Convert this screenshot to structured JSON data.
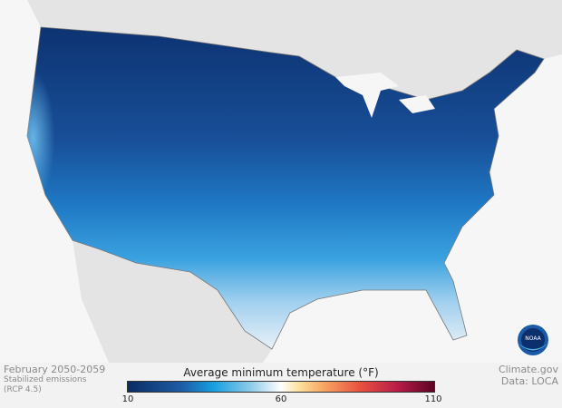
{
  "map": {
    "period": "February 2050-2059",
    "scenario_line1": "Stabilized emissions",
    "scenario_line2": "(RCP 4.5)",
    "variable": "Average minimum temperature (°F)",
    "legend": {
      "min": "10",
      "mid": "60",
      "max": "110",
      "colors": [
        "#0b2c63",
        "#1d5ea8",
        "#16a0df",
        "#8ccbe8",
        "#ffffff",
        "#fde09a",
        "#f6a562",
        "#e8503f",
        "#b71c48",
        "#5c0424"
      ]
    },
    "credit": "Climate.gov",
    "source": "Data: LOCA",
    "logo": "NOAA"
  }
}
